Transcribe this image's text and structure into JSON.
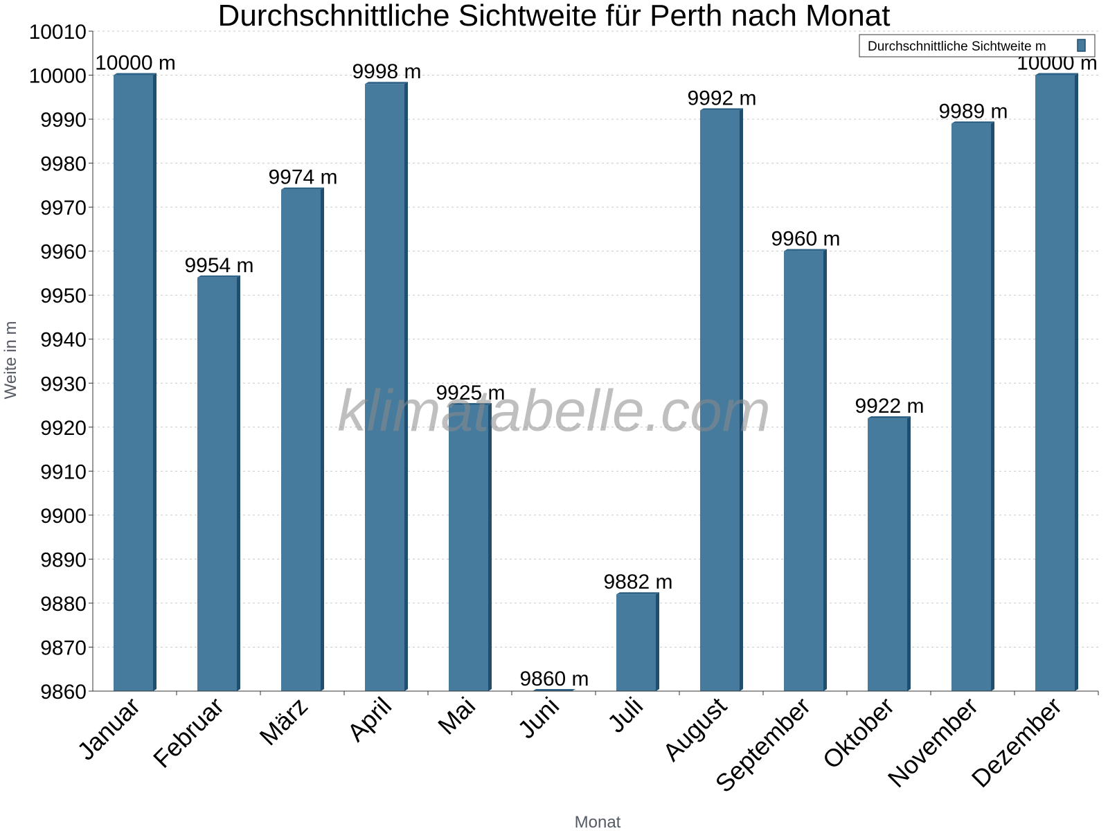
{
  "chart_data": {
    "type": "bar",
    "title": "Durchschnittliche Sichtweite für Perth nach Monat",
    "xlabel": "Monat",
    "ylabel": "Weite in m",
    "ylim": [
      9860,
      10010
    ],
    "yticks": [
      9860,
      9870,
      9880,
      9890,
      9900,
      9910,
      9920,
      9930,
      9940,
      9950,
      9960,
      9970,
      9980,
      9990,
      10000,
      10010
    ],
    "grid": true,
    "legend_position": "top-right",
    "categories": [
      "Januar",
      "Februar",
      "März",
      "April",
      "Mai",
      "Juni",
      "Juli",
      "August",
      "September",
      "Oktober",
      "November",
      "Dezember"
    ],
    "series": [
      {
        "name": "Durchschnittliche Sichtweite m",
        "color": "#467b9e",
        "values": [
          10000,
          9954,
          9974,
          9998,
          9925,
          9860,
          9882,
          9992,
          9960,
          9922,
          9989,
          10000
        ],
        "labels": [
          "10000 m",
          "9954 m",
          "9974 m",
          "9998 m",
          "9925 m",
          "9860 m",
          "9882 m",
          "9992 m",
          "9960 m",
          "9922 m",
          "9989 m",
          "10000 m"
        ]
      }
    ]
  },
  "watermark": "klimatabelle.com",
  "colors": {
    "bar": "#467b9e",
    "bar_side": "#1f4e6e",
    "bar_top": "#2f6488"
  }
}
